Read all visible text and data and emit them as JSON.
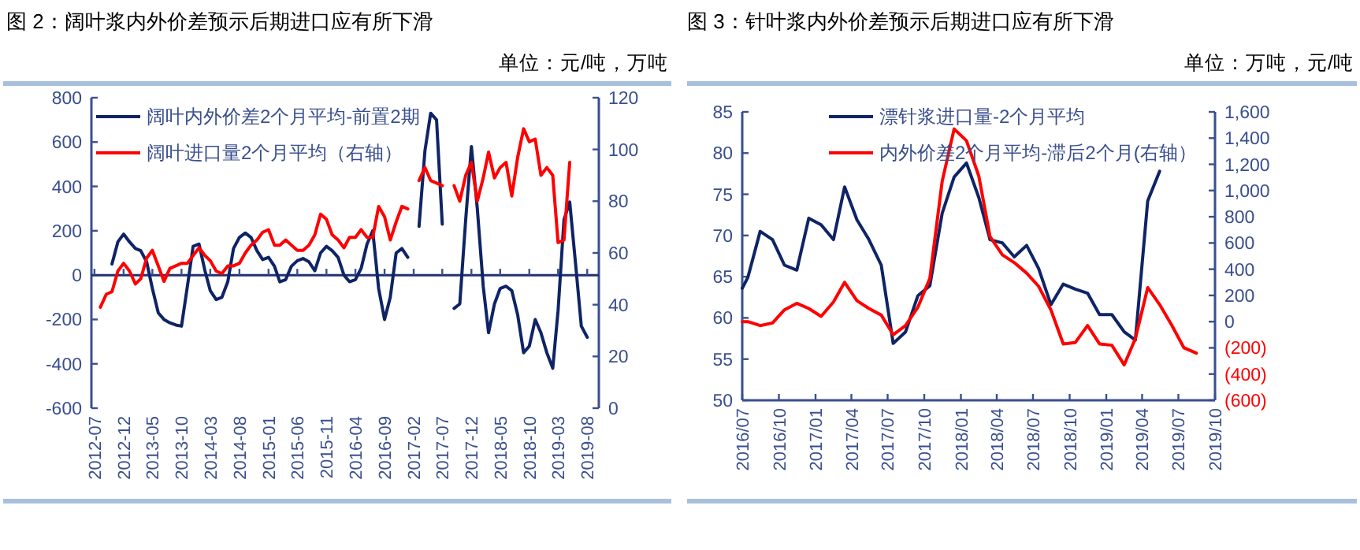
{
  "chart_data": [
    {
      "type": "line",
      "title": "图 2：阔叶浆内外价差预示后期进口应有所下滑",
      "subtitle": "单位：元/吨，万吨",
      "legend": "top left",
      "x": [
        "2012-08",
        "2012-09",
        "2012-10",
        "2012-11",
        "2012-12",
        "2013-01",
        "2013-02",
        "2013-03",
        "2013-04",
        "2013-05",
        "2013-06",
        "2013-07",
        "2013-08",
        "2013-09",
        "2013-10",
        "2013-11",
        "2013-12",
        "2014-01",
        "2014-02",
        "2014-03",
        "2014-04",
        "2014-05",
        "2014-06",
        "2014-07",
        "2014-08",
        "2014-09",
        "2014-10",
        "2014-11",
        "2014-12",
        "2015-01",
        "2015-02",
        "2015-03",
        "2015-04",
        "2015-05",
        "2015-06",
        "2015-07",
        "2015-08",
        "2015-09",
        "2015-10",
        "2015-11",
        "2015-12",
        "2016-01",
        "2016-02",
        "2016-03",
        "2016-04",
        "2016-05",
        "2016-06",
        "2016-07",
        "2016-08",
        "2016-09",
        "2016-10",
        "2016-11",
        "2016-12",
        "2017-01",
        "2017-03",
        "2017-04",
        "2017-05",
        "2017-06",
        "2017-07",
        "2017-09",
        "2017-10",
        "2017-11",
        "2017-12",
        "2018-01",
        "2018-02",
        "2018-03",
        "2018-04",
        "2018-05",
        "2018-06",
        "2018-07",
        "2018-08",
        "2018-09",
        "2018-10",
        "2018-11",
        "2018-12",
        "2019-01",
        "2019-02",
        "2019-03",
        "2019-04",
        "2019-05",
        "2019-06",
        "2019-07",
        "2019-08"
      ],
      "xlim": [
        "2012-06-15",
        "2019-10"
      ],
      "xticks": [
        "2012-07",
        "2012-12",
        "2013-05",
        "2013-10",
        "2014-03",
        "2014-08",
        "2015-01",
        "2015-06",
        "2015-11",
        "2016-04",
        "2016-09",
        "2017-02",
        "2017-07",
        "2017-12",
        "2018-05",
        "2018-10",
        "2019-03",
        "2019-08"
      ],
      "ylim": [
        -600,
        800
      ],
      "yticks": [
        -600,
        -400,
        -200,
        0,
        200,
        400,
        600,
        800
      ],
      "y2lim": [
        0,
        120
      ],
      "y2ticks": [
        0,
        20,
        40,
        60,
        80,
        100,
        120
      ],
      "ref_lines": [
        {
          "axis": "y",
          "value": 0,
          "color": "#1f3370"
        }
      ],
      "series": [
        {
          "name": "阔叶内外价差2个月平均-前置2期",
          "color": "#0f2466",
          "values": [
            null,
            null,
            50,
            150,
            185,
            150,
            120,
            110,
            60,
            -60,
            -170,
            -200,
            -215,
            -225,
            -230,
            -50,
            130,
            140,
            20,
            -70,
            -110,
            -100,
            -30,
            120,
            170,
            190,
            170,
            110,
            70,
            80,
            40,
            -30,
            -20,
            40,
            65,
            75,
            60,
            20,
            100,
            130,
            110,
            80,
            0,
            -30,
            -20,
            30,
            140,
            200,
            -60,
            -200,
            -100,
            100,
            120,
            80,
            220,
            560,
            730,
            700,
            230,
            -150,
            -130,
            250,
            580,
            300,
            -50,
            -260,
            -130,
            -60,
            -50,
            -70,
            -180,
            -350,
            -320,
            -200,
            -260,
            -350,
            -420,
            -160,
            250,
            330,
            50,
            -230,
            -280
          ]
        },
        {
          "name": "阔叶进口量2个月平均（右轴）",
          "color": "#ff0000",
          "axis": "y2",
          "values": [
            39,
            44,
            45,
            53,
            56,
            53,
            48,
            50,
            58,
            61,
            55,
            49,
            54,
            55,
            56,
            56,
            59,
            62,
            59,
            57,
            53,
            52,
            55,
            55,
            56,
            60,
            63,
            65,
            68,
            69,
            63,
            63,
            65,
            63,
            61,
            61,
            63,
            67,
            75,
            73,
            67,
            65,
            62,
            66,
            66,
            69,
            66,
            66,
            78,
            74,
            65,
            72,
            78,
            77,
            88,
            93,
            88,
            87,
            86,
            86,
            80,
            90,
            95,
            80,
            89,
            99,
            89,
            93,
            95,
            82,
            97,
            108,
            103,
            104,
            90,
            93,
            90,
            64,
            65,
            95,
            null,
            null,
            null
          ]
        }
      ]
    },
    {
      "type": "line",
      "title": "图 3：针叶浆内外价差预示后期进口应有所下滑",
      "subtitle": "单位：万吨，元/吨",
      "legend": "top",
      "x": [
        "2016-07-01",
        "2016-07-15",
        "2016-08-15",
        "2016-09-15",
        "2016-10-15",
        "2016-11-15",
        "2016-12-15",
        "2017-01-15",
        "2017-02-15",
        "2017-03-15",
        "2017-04-15",
        "2017-05-15",
        "2017-06-15",
        "2017-07-15",
        "2017-08-15",
        "2017-09-15",
        "2017-10-15",
        "2017-11-15",
        "2017-12-15",
        "2018-01-15",
        "2018-02-15",
        "2018-03-15",
        "2018-04-15",
        "2018-05-15",
        "2018-06-15",
        "2018-07-15",
        "2018-08-15",
        "2018-09-15",
        "2018-10-15",
        "2018-11-15",
        "2018-12-15",
        "2019-01-15",
        "2019-02-15",
        "2019-03-15",
        "2019-04-15",
        "2019-05-15",
        "2019-06-15",
        "2019-07-15",
        "2019-08-15"
      ],
      "xlim": [
        "2016-07",
        "2019-10"
      ],
      "xticks": [
        {
          "value": "2016-07",
          "label": "2016/07"
        },
        {
          "value": "2016-10",
          "label": "2016/10"
        },
        {
          "value": "2017-01",
          "label": "2017/01"
        },
        {
          "value": "2017-04",
          "label": "2017/04"
        },
        {
          "value": "2017-07",
          "label": "2017/07"
        },
        {
          "value": "2017-10",
          "label": "2017/10"
        },
        {
          "value": "2018-01",
          "label": "2018/01"
        },
        {
          "value": "2018-04",
          "label": "2018/04"
        },
        {
          "value": "2018-07",
          "label": "2018/07"
        },
        {
          "value": "2018-10",
          "label": "2018/10"
        },
        {
          "value": "2019-01",
          "label": "2019/01"
        },
        {
          "value": "2019-04",
          "label": "2019/04"
        },
        {
          "value": "2019-07",
          "label": "2019/07"
        },
        {
          "value": "2019-10",
          "label": "2019/10"
        }
      ],
      "ylim": [
        50,
        85
      ],
      "yticks": [
        50,
        55,
        60,
        65,
        70,
        75,
        80,
        85
      ],
      "y2lim": [
        -600,
        1600
      ],
      "y2ticks": [
        {
          "value": -600,
          "label": "(600)"
        },
        {
          "value": -400,
          "label": "(400)"
        },
        {
          "value": -200,
          "label": "(200)"
        },
        0,
        200,
        400,
        600,
        800,
        {
          "value": 1000,
          "label": "1,000"
        },
        {
          "value": 1200,
          "label": "1,200"
        },
        {
          "value": 1400,
          "label": "1,400"
        },
        {
          "value": 1600,
          "label": "1,600"
        }
      ],
      "series": [
        {
          "name": "漂针浆进口量-2个月平均",
          "color": "#0f2466",
          "values": [
            63.6,
            64.9,
            70.5,
            69.5,
            66.4,
            65.8,
            72.1,
            71.3,
            69.5,
            75.9,
            71.9,
            69.5,
            66.4,
            56.9,
            58.3,
            62.7,
            63.9,
            72.7,
            77.1,
            78.8,
            74.6,
            69.5,
            69.1,
            67.4,
            68.8,
            66.0,
            61.6,
            64.1,
            63.5,
            63.0,
            60.4,
            60.4,
            58.3,
            57.3,
            74.2,
            77.8,
            null,
            null,
            null
          ]
        },
        {
          "name": "内外价差2个月平均-滞后2个月(右轴）",
          "color": "#ff0000",
          "axis": "y2",
          "values": [
            0,
            0,
            -30,
            -10,
            90,
            140,
            100,
            40,
            150,
            300,
            160,
            100,
            50,
            -100,
            -30,
            110,
            330,
            1070,
            1470,
            1380,
            1110,
            650,
            510,
            450,
            370,
            270,
            90,
            -170,
            -160,
            -30,
            -170,
            -180,
            -330,
            -130,
            260,
            130,
            -30,
            -200,
            -240
          ]
        }
      ]
    }
  ]
}
